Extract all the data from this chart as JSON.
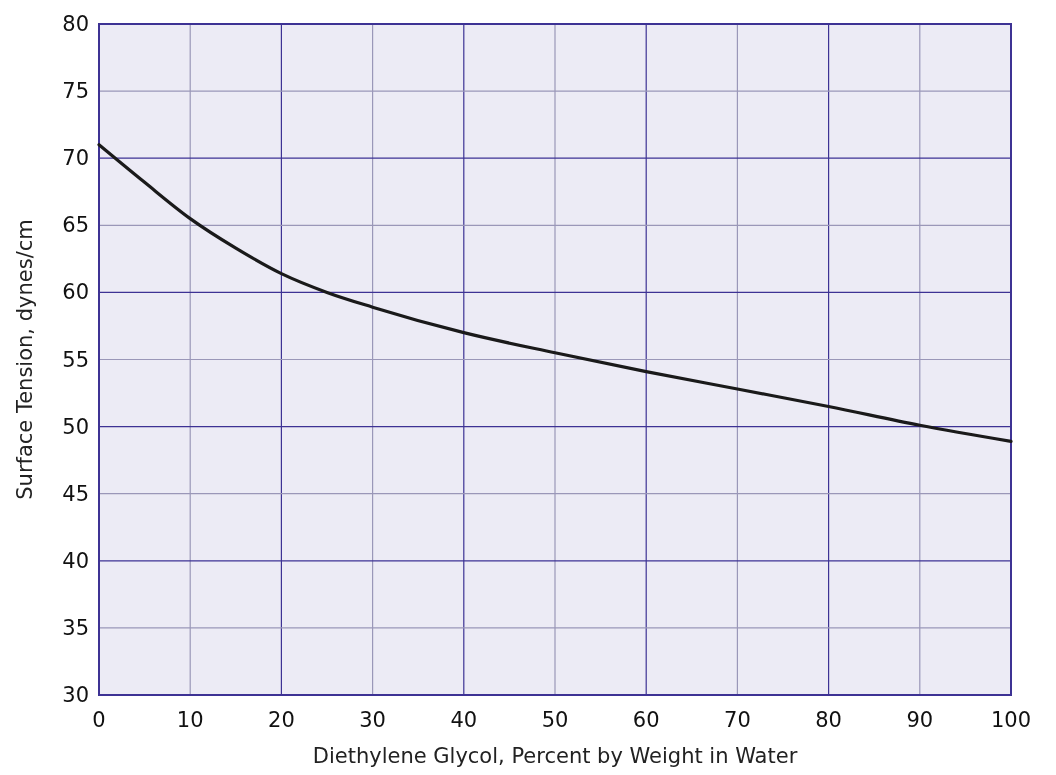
{
  "chart_data": {
    "type": "line",
    "xlabel": "Diethylene Glycol, Percent by Weight in Water",
    "ylabel": "Surface Tension, dynes/cm",
    "x": [
      0,
      5,
      10,
      15,
      20,
      25,
      30,
      40,
      50,
      60,
      70,
      80,
      90,
      100
    ],
    "series": [
      {
        "color": "#1a1a1a",
        "values": [
          71,
          68.2,
          65.5,
          63.3,
          61.4,
          60,
          58.9,
          57,
          55.5,
          54.1,
          52.8,
          51.5,
          50.1,
          48.9
        ]
      }
    ],
    "xlim": [
      0,
      100
    ],
    "xticks": [
      0,
      10,
      20,
      30,
      40,
      50,
      60,
      70,
      80,
      90,
      100
    ],
    "ylim": [
      30,
      80
    ],
    "yticks": [
      30,
      35,
      40,
      45,
      50,
      55,
      60,
      65,
      70,
      75,
      80
    ],
    "grid": true,
    "marker": "none",
    "line_style": "solid"
  }
}
